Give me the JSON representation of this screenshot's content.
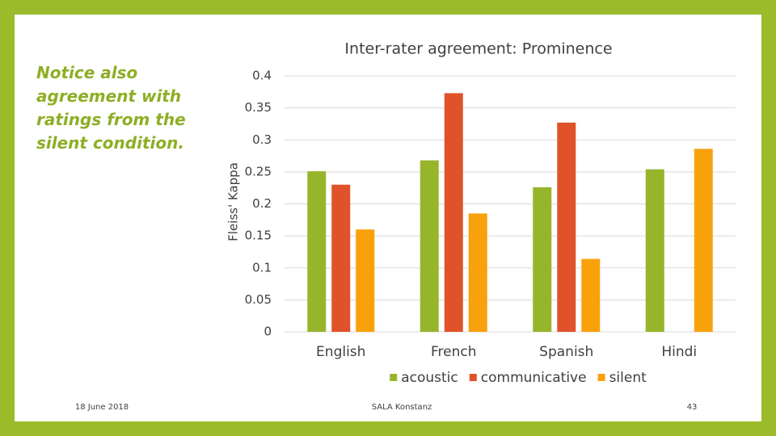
{
  "slide": {
    "note": "Notice also agreement with ratings from the silent condition.",
    "date": "18 June 2018",
    "footer": "SALA Konstanz",
    "page": "43"
  },
  "chart_data": {
    "type": "bar",
    "title": "Inter-rater agreement: Prominence",
    "y_label": "Fleiss' Kappa",
    "categories": [
      "English",
      "French",
      "Spanish",
      "Hindi"
    ],
    "series": [
      {
        "name": "acoustic",
        "color": "#97b52b",
        "values": [
          0.251,
          0.268,
          0.226,
          0.254
        ]
      },
      {
        "name": "communicative",
        "color": "#e0522a",
        "values": [
          0.23,
          0.373,
          0.327,
          null
        ]
      },
      {
        "name": "silent",
        "color": "#f9a10b",
        "values": [
          0.16,
          0.185,
          0.114,
          0.286
        ]
      }
    ],
    "ylim": [
      0,
      0.4
    ],
    "yticks": [
      0,
      0.05,
      0.1,
      0.15,
      0.2,
      0.25,
      0.3,
      0.35,
      0.4
    ],
    "grid": true,
    "legend": "bottom"
  }
}
